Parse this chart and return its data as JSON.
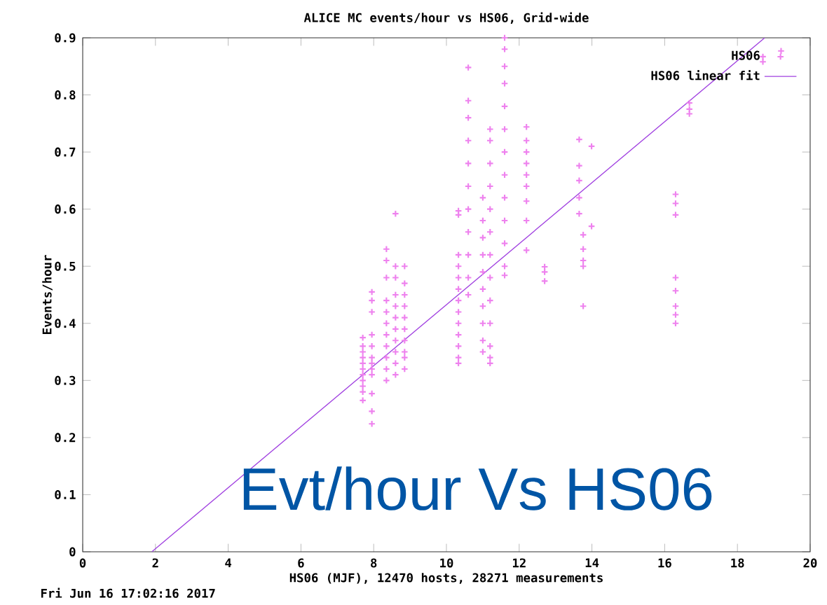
{
  "chart_data": {
    "type": "scatter",
    "title": "ALICE MC events/hour vs HS06, Grid-wide",
    "xlabel": "HS06 (MJF), 12470 hosts, 28271 measurements",
    "ylabel": "Events/hour",
    "annotations": [
      "Evt/hour Vs HS06",
      "Fri Jun 16 17:02:16 2017"
    ],
    "xlim": [
      0,
      20
    ],
    "ylim": [
      0,
      0.9
    ],
    "xticks": [
      0,
      2,
      4,
      6,
      8,
      10,
      12,
      14,
      16,
      18,
      20
    ],
    "yticks": [
      0,
      0.1,
      0.2,
      0.3,
      0.4,
      0.5,
      0.6,
      0.7,
      0.8,
      0.9
    ],
    "legend": "top right",
    "series": [
      {
        "name": "HS06",
        "marker": "cross",
        "color": "#ee82ee",
        "x": [
          7.7,
          7.7,
          7.7,
          7.7,
          7.7,
          7.7,
          7.7,
          7.7,
          7.7,
          7.7,
          7.7,
          7.95,
          7.95,
          7.95,
          7.95,
          7.95,
          7.95,
          7.95,
          7.95,
          7.95,
          7.95,
          7.95,
          7.95,
          8.35,
          8.35,
          8.35,
          8.35,
          8.35,
          8.35,
          8.35,
          8.35,
          8.35,
          8.35,
          8.35,
          8.6,
          8.6,
          8.6,
          8.6,
          8.6,
          8.6,
          8.6,
          8.6,
          8.6,
          8.6,
          8.6,
          8.85,
          8.85,
          8.85,
          8.85,
          8.85,
          8.85,
          8.85,
          8.85,
          8.85,
          8.85,
          10.33,
          10.33,
          10.33,
          10.33,
          10.33,
          10.33,
          10.33,
          10.33,
          10.33,
          10.33,
          10.33,
          10.33,
          10.33,
          10.6,
          10.6,
          10.6,
          10.6,
          10.6,
          10.6,
          10.6,
          10.6,
          10.6,
          10.6,
          10.6,
          11.0,
          11.0,
          11.0,
          11.0,
          11.0,
          11.0,
          11.0,
          11.0,
          11.0,
          11.0,
          11.2,
          11.2,
          11.2,
          11.2,
          11.2,
          11.2,
          11.2,
          11.2,
          11.2,
          11.2,
          11.2,
          11.2,
          11.2,
          11.6,
          11.6,
          11.6,
          11.6,
          11.6,
          11.6,
          11.6,
          11.6,
          11.6,
          11.6,
          11.6,
          11.6,
          11.6,
          12.2,
          12.2,
          12.2,
          12.2,
          12.2,
          12.2,
          12.2,
          12.2,
          12.2,
          12.7,
          12.7,
          12.7,
          13.65,
          13.65,
          13.65,
          13.65,
          13.65,
          13.99,
          13.99,
          13.76,
          13.76,
          13.76,
          13.76,
          13.76,
          16.3,
          16.3,
          16.3,
          16.3,
          16.3,
          16.3,
          16.3,
          16.3,
          16.68,
          16.68,
          16.68,
          18.7,
          18.7,
          19.2
        ],
        "values": [
          0.375,
          0.36,
          0.35,
          0.34,
          0.33,
          0.32,
          0.31,
          0.3,
          0.29,
          0.28,
          0.265,
          0.455,
          0.44,
          0.42,
          0.38,
          0.36,
          0.34,
          0.33,
          0.32,
          0.31,
          0.277,
          0.246,
          0.224,
          0.53,
          0.51,
          0.48,
          0.44,
          0.42,
          0.4,
          0.38,
          0.36,
          0.34,
          0.32,
          0.3,
          0.592,
          0.5,
          0.48,
          0.45,
          0.43,
          0.41,
          0.39,
          0.37,
          0.35,
          0.33,
          0.31,
          0.5,
          0.47,
          0.45,
          0.43,
          0.41,
          0.39,
          0.37,
          0.35,
          0.34,
          0.32,
          0.597,
          0.59,
          0.52,
          0.5,
          0.48,
          0.46,
          0.44,
          0.42,
          0.4,
          0.38,
          0.36,
          0.34,
          0.33,
          0.848,
          0.79,
          0.76,
          0.72,
          0.68,
          0.64,
          0.6,
          0.56,
          0.52,
          0.48,
          0.45,
          0.62,
          0.58,
          0.55,
          0.52,
          0.49,
          0.46,
          0.43,
          0.4,
          0.37,
          0.35,
          0.74,
          0.72,
          0.68,
          0.64,
          0.6,
          0.56,
          0.52,
          0.48,
          0.44,
          0.4,
          0.36,
          0.34,
          0.33,
          0.9,
          0.88,
          0.85,
          0.82,
          0.78,
          0.74,
          0.7,
          0.66,
          0.62,
          0.58,
          0.54,
          0.5,
          0.484,
          0.744,
          0.72,
          0.7,
          0.68,
          0.66,
          0.64,
          0.614,
          0.58,
          0.528,
          0.499,
          0.49,
          0.474,
          0.722,
          0.676,
          0.65,
          0.62,
          0.592,
          0.71,
          0.57,
          0.555,
          0.53,
          0.51,
          0.5,
          0.43,
          0.626,
          0.61,
          0.59,
          0.48,
          0.457,
          0.43,
          0.415,
          0.4,
          0.786,
          0.775,
          0.767,
          0.867,
          0.858,
          0.877
        ]
      },
      {
        "name": "HS06 linear fit",
        "type": "line",
        "marker": "none",
        "color": "#a040e0",
        "x": [
          1.9,
          18.75
        ],
        "values": [
          0,
          0.9
        ]
      }
    ]
  }
}
